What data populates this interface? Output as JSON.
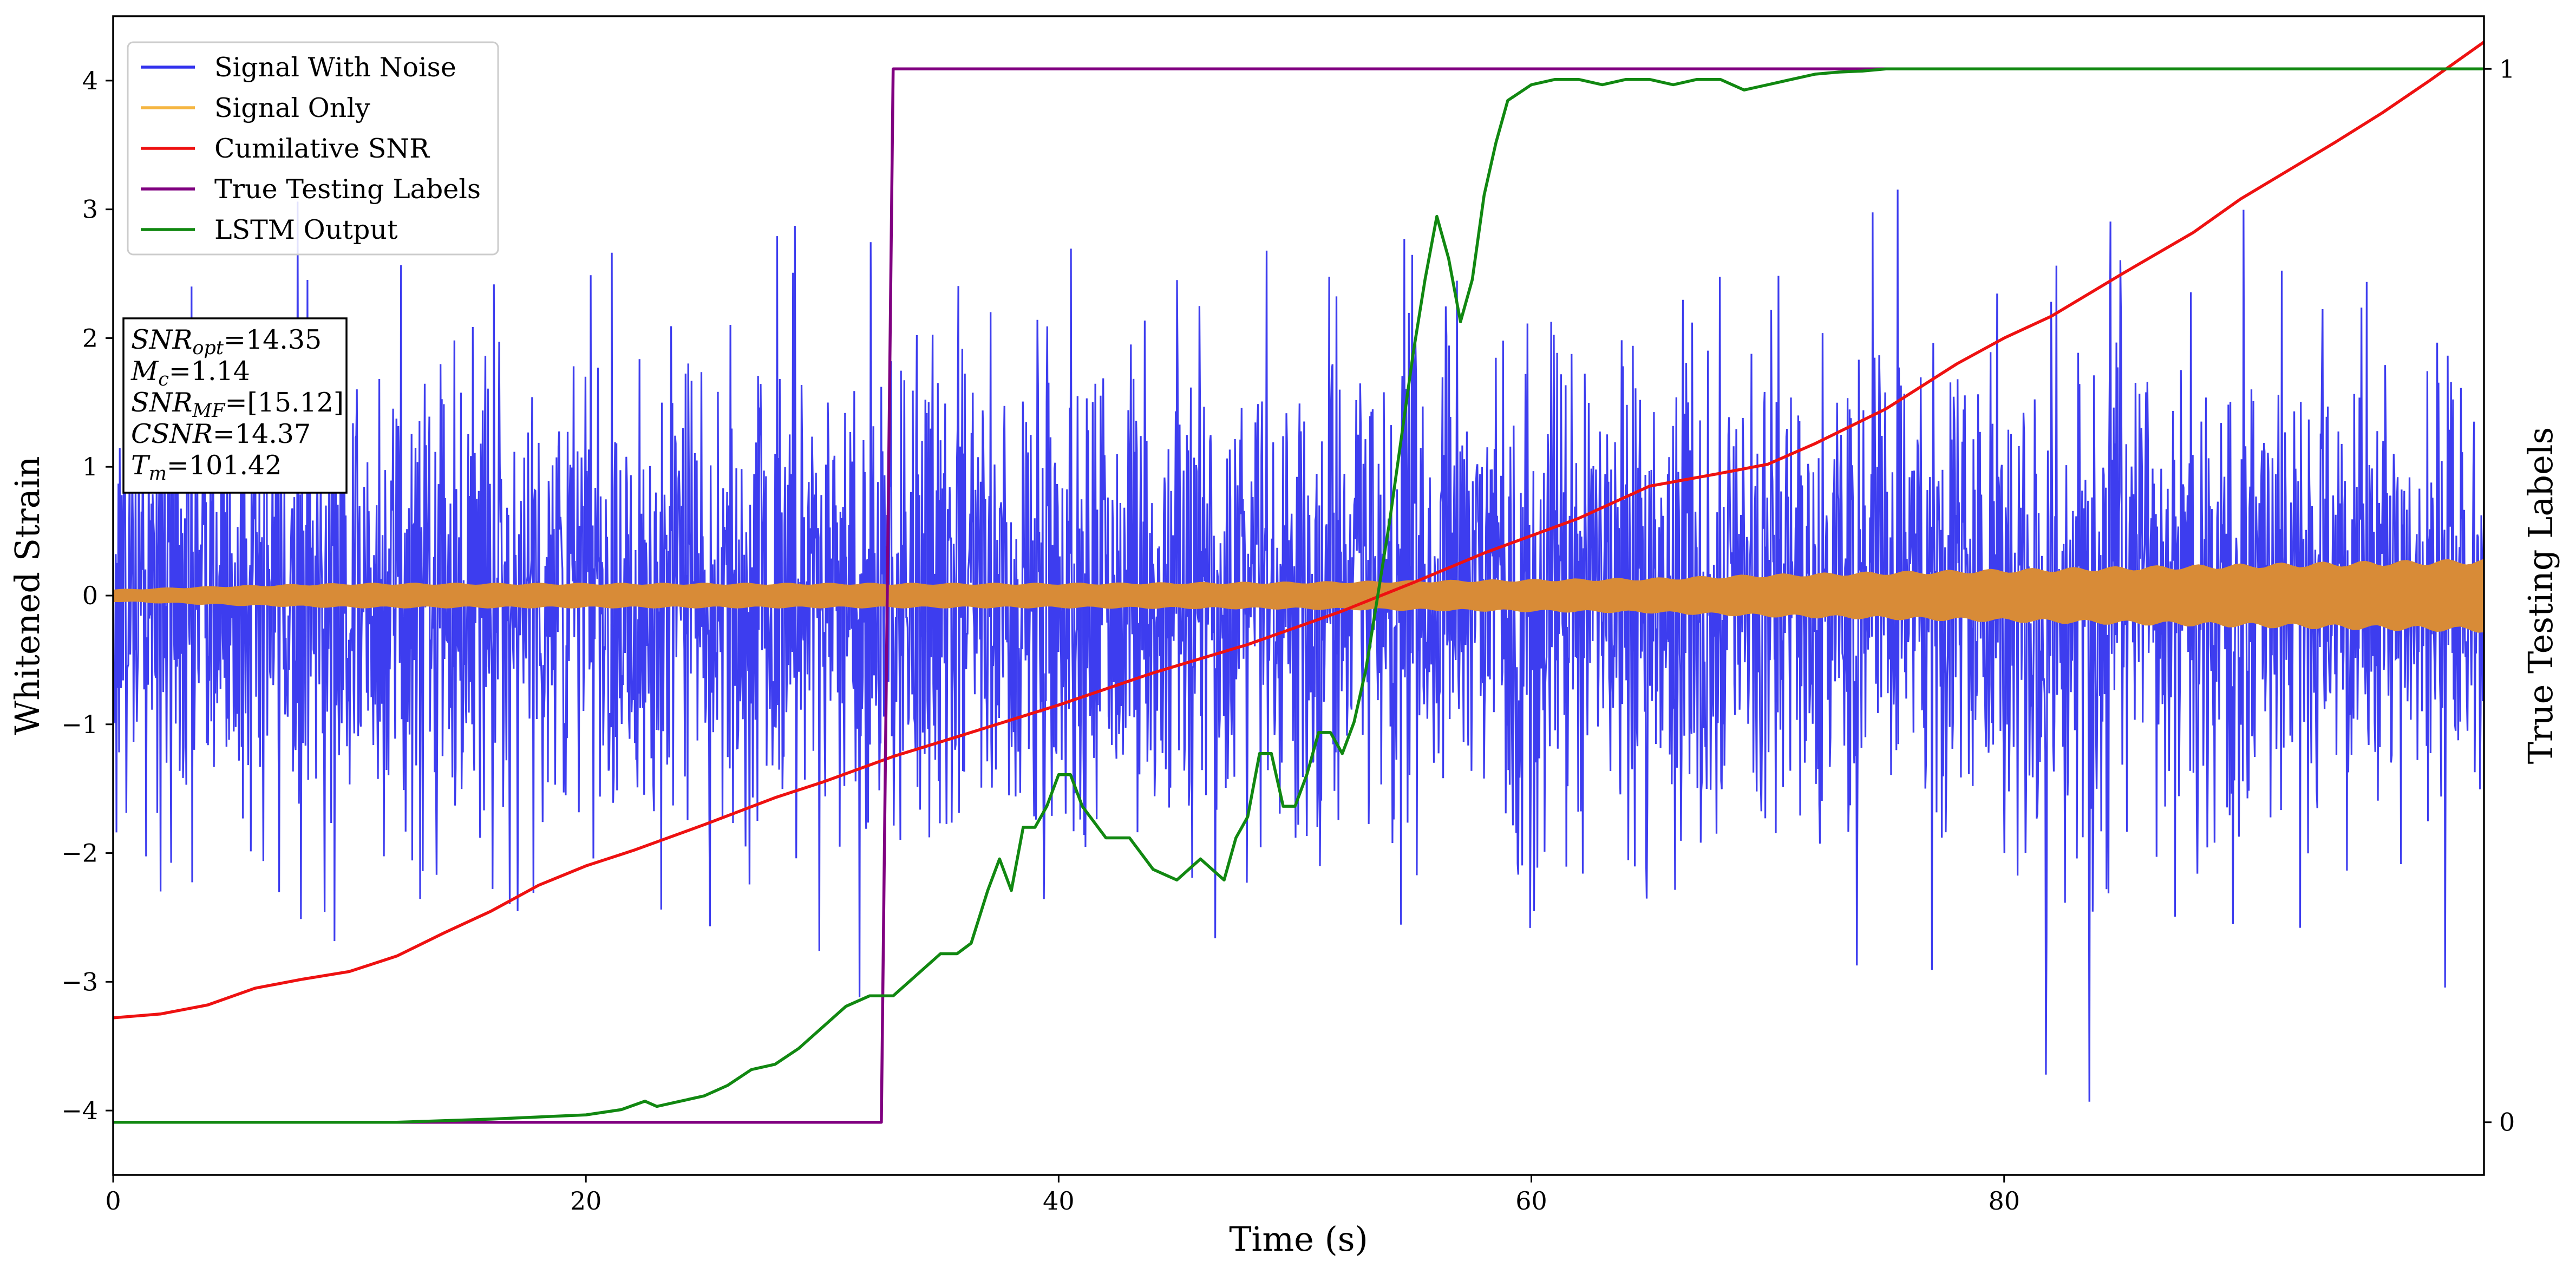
{
  "chart_data": {
    "type": "line",
    "xlabel": "Time (s)",
    "ylabel": "Whitened Strain",
    "y2label": "True Testing Labels",
    "xlim": [
      0,
      100.3
    ],
    "ylim": [
      -4.5,
      4.5
    ],
    "y2lim": [
      -0.05,
      1.05
    ],
    "x_ticks": [
      0,
      20,
      40,
      60,
      80
    ],
    "y_ticks": [
      -4,
      -3,
      -2,
      -1,
      0,
      1,
      2,
      3,
      4
    ],
    "y2_ticks": [
      0,
      1
    ],
    "legend_position": "upper-left",
    "annotation": [
      {
        "base": "SNR",
        "sub": "opt",
        "value": "=14.35"
      },
      {
        "base": "M",
        "sub": "c",
        "value": "=1.14"
      },
      {
        "base": "SNR",
        "sub": "MF",
        "value": "=[15.12]"
      },
      {
        "base": "CSNR",
        "sub": "",
        "value": "=14.37"
      },
      {
        "base": "T",
        "sub": "m",
        "value": "=101.42"
      }
    ],
    "series": [
      {
        "name": "Signal With Noise",
        "color": "#3333ee",
        "axis": "left",
        "kind": "noise",
        "noise_std": 0.95,
        "noise_range": [
          -4.1,
          3.4
        ]
      },
      {
        "name": "Signal Only",
        "color": "#f5b642",
        "axis": "left",
        "kind": "envelope",
        "envelope": {
          "x": [
            0,
            5,
            10,
            20,
            30,
            40,
            50,
            55,
            60,
            65,
            70,
            75,
            80,
            85,
            90,
            95,
            100.3
          ],
          "amplitude": [
            0.05,
            0.08,
            0.1,
            0.1,
            0.1,
            0.1,
            0.11,
            0.12,
            0.13,
            0.14,
            0.17,
            0.19,
            0.21,
            0.23,
            0.25,
            0.27,
            0.29
          ]
        }
      },
      {
        "name": "Cumilative SNR",
        "color": "#ee1111",
        "axis": "left",
        "x": [
          0,
          2,
          4,
          6,
          8,
          10,
          12,
          14,
          16,
          18,
          20,
          22,
          25,
          28,
          30,
          33,
          36,
          40,
          44,
          48,
          52,
          55,
          58,
          62,
          65,
          68,
          70,
          72,
          75,
          78,
          80,
          82,
          85,
          88,
          90,
          92,
          94,
          96,
          98,
          100.3
        ],
        "y": [
          -3.28,
          -3.25,
          -3.18,
          -3.05,
          -2.98,
          -2.92,
          -2.8,
          -2.62,
          -2.45,
          -2.25,
          -2.1,
          -1.98,
          -1.78,
          -1.57,
          -1.45,
          -1.25,
          -1.08,
          -0.85,
          -0.6,
          -0.38,
          -0.12,
          0.1,
          0.33,
          0.6,
          0.85,
          0.95,
          1.02,
          1.18,
          1.45,
          1.8,
          2.0,
          2.17,
          2.5,
          2.82,
          3.08,
          3.3,
          3.52,
          3.75,
          4.0,
          4.3
        ]
      },
      {
        "name": "True Testing Labels",
        "color": "#800080",
        "axis": "right",
        "x": [
          0,
          32.5,
          33.0,
          100.3
        ],
        "y": [
          0,
          0,
          1,
          1
        ]
      },
      {
        "name": "LSTM Output",
        "color": "#118811",
        "axis": "right",
        "x": [
          0,
          12,
          16,
          20,
          21.5,
          22.5,
          23,
          24,
          25,
          26,
          27,
          28,
          29,
          30,
          31,
          32,
          33,
          34,
          35,
          35.7,
          36.3,
          37,
          37.5,
          38,
          38.5,
          39,
          39.5,
          40,
          40.5,
          41,
          42,
          43,
          44,
          45,
          46,
          47,
          47.5,
          48,
          48.5,
          49,
          49.5,
          50,
          50.5,
          51,
          51.5,
          52,
          52.5,
          53,
          53.5,
          54,
          54.5,
          55,
          55.5,
          56,
          56.5,
          57,
          57.5,
          58,
          58.5,
          59,
          60,
          61,
          62,
          63,
          64,
          65,
          66,
          67,
          68,
          69,
          70,
          71,
          72,
          73,
          74,
          75,
          76,
          77,
          100.3
        ],
        "y": [
          0,
          0,
          0.003,
          0.007,
          0.012,
          0.02,
          0.015,
          0.02,
          0.025,
          0.035,
          0.05,
          0.055,
          0.07,
          0.09,
          0.11,
          0.12,
          0.12,
          0.14,
          0.16,
          0.16,
          0.17,
          0.22,
          0.25,
          0.22,
          0.28,
          0.28,
          0.3,
          0.33,
          0.33,
          0.3,
          0.27,
          0.27,
          0.24,
          0.23,
          0.25,
          0.23,
          0.27,
          0.29,
          0.35,
          0.35,
          0.3,
          0.3,
          0.33,
          0.37,
          0.37,
          0.35,
          0.38,
          0.43,
          0.5,
          0.57,
          0.65,
          0.73,
          0.8,
          0.86,
          0.82,
          0.76,
          0.8,
          0.88,
          0.93,
          0.97,
          0.985,
          0.99,
          0.99,
          0.985,
          0.99,
          0.99,
          0.985,
          0.99,
          0.99,
          0.98,
          0.985,
          0.99,
          0.995,
          0.997,
          0.998,
          1,
          1,
          1,
          1
        ]
      }
    ]
  }
}
